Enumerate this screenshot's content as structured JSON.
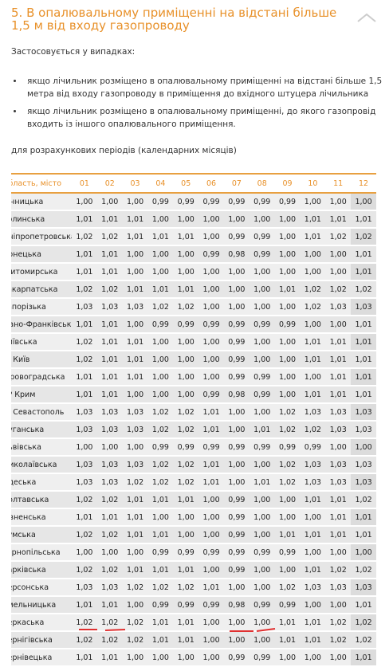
{
  "header": {
    "title": "5. В опалювальному приміщенні на відстані більше 1,5 м від входу газопроводу"
  },
  "intro": "Застосовується у випадках:",
  "bullets": [
    "якщо лічильник розміщено в опалювальному приміщенні на відстані більше 1,5 метра від входу газопроводу в приміщення до вхідного штуцера лічильника",
    "якщо лічильник розміщено в опалювальному приміщенні, до якого газопровід входить із іншого опалювального приміщення."
  ],
  "caption": "для розрахункових періодів (календарних місяців)",
  "table": {
    "columns": [
      "Область, місто",
      "01",
      "02",
      "03",
      "04",
      "05",
      "06",
      "07",
      "08",
      "09",
      "10",
      "11",
      "12"
    ],
    "rows": [
      [
        "Вінницька",
        "1,00",
        "1,00",
        "1,00",
        "0,99",
        "0,99",
        "0,99",
        "0,99",
        "0,99",
        "0,99",
        "1,00",
        "1,00",
        "1,00"
      ],
      [
        "Волинська",
        "1,01",
        "1,01",
        "1,01",
        "1,00",
        "1,00",
        "1,00",
        "1,00",
        "1,00",
        "1,00",
        "1,01",
        "1,01",
        "1,01"
      ],
      [
        "Дніпропетровська",
        "1,02",
        "1,02",
        "1,01",
        "1,01",
        "1,01",
        "1,00",
        "0,99",
        "0,99",
        "1,00",
        "1,01",
        "1,02",
        "1,02"
      ],
      [
        "Донецька",
        "1,01",
        "1,01",
        "1,00",
        "1,00",
        "1,00",
        "0,99",
        "0,98",
        "0,99",
        "1,00",
        "1,00",
        "1,00",
        "1,01"
      ],
      [
        "Житомирська",
        "1,01",
        "1,01",
        "1,00",
        "1,00",
        "1,00",
        "1,00",
        "1,00",
        "1,00",
        "1,00",
        "1,00",
        "1,00",
        "1,01"
      ],
      [
        "Закарпатська",
        "1,02",
        "1,02",
        "1,01",
        "1,01",
        "1,01",
        "1,00",
        "1,00",
        "1,00",
        "1,01",
        "1,02",
        "1,02",
        "1,02"
      ],
      [
        "Запорізька",
        "1,03",
        "1,03",
        "1,03",
        "1,02",
        "1,02",
        "1,00",
        "1,00",
        "1,00",
        "1,00",
        "1,02",
        "1,03",
        "1,03"
      ],
      [
        "Івано-Франківська",
        "1,01",
        "1,01",
        "1,00",
        "0,99",
        "0,99",
        "0,99",
        "0,99",
        "0,99",
        "0,99",
        "1,00",
        "1,00",
        "1,01"
      ],
      [
        "Київська",
        "1,02",
        "1,01",
        "1,01",
        "1,00",
        "1,00",
        "1,00",
        "0,99",
        "1,00",
        "1,00",
        "1,01",
        "1,01",
        "1,01"
      ],
      [
        "м. Київ",
        "1,02",
        "1,01",
        "1,01",
        "1,00",
        "1,00",
        "1,00",
        "0,99",
        "1,00",
        "1,00",
        "1,01",
        "1,01",
        "1,01"
      ],
      [
        "Кіровоградська",
        "1,01",
        "1,01",
        "1,01",
        "1,00",
        "1,00",
        "1,00",
        "0,99",
        "0,99",
        "1,00",
        "1,00",
        "1,01",
        "1,01"
      ],
      [
        "АР Крим",
        "1,01",
        "1,01",
        "1,00",
        "1,00",
        "1,00",
        "0,99",
        "0,98",
        "0,99",
        "1,00",
        "1,01",
        "1,01",
        "1,01"
      ],
      [
        "м. Севастополь",
        "1,03",
        "1,03",
        "1,03",
        "1,02",
        "1,02",
        "1,01",
        "1,00",
        "1,00",
        "1,02",
        "1,03",
        "1,03",
        "1,03"
      ],
      [
        "Луганська",
        "1,03",
        "1,03",
        "1,03",
        "1,02",
        "1,02",
        "1,01",
        "1,00",
        "1,01",
        "1,02",
        "1,02",
        "1,03",
        "1,03"
      ],
      [
        "Львівська",
        "1,00",
        "1,00",
        "1,00",
        "0,99",
        "0,99",
        "0,99",
        "0,99",
        "0,99",
        "0,99",
        "0,99",
        "1,00",
        "1,00"
      ],
      [
        "Миколаївська",
        "1,03",
        "1,03",
        "1,03",
        "1,02",
        "1,02",
        "1,01",
        "1,00",
        "1,00",
        "1,02",
        "1,03",
        "1,03",
        "1,03"
      ],
      [
        "Одеська",
        "1,03",
        "1,03",
        "1,02",
        "1,02",
        "1,02",
        "1,01",
        "1,00",
        "1,01",
        "1,02",
        "1,03",
        "1,03",
        "1,03"
      ],
      [
        "Полтавська",
        "1,02",
        "1,02",
        "1,01",
        "1,01",
        "1,01",
        "1,00",
        "0,99",
        "1,00",
        "1,00",
        "1,01",
        "1,01",
        "1,02"
      ],
      [
        "Рівненська",
        "1,01",
        "1,01",
        "1,01",
        "1,00",
        "1,00",
        "1,00",
        "0,99",
        "1,00",
        "1,00",
        "1,00",
        "1,01",
        "1,01"
      ],
      [
        "Сумська",
        "1,02",
        "1,02",
        "1,01",
        "1,01",
        "1,00",
        "1,00",
        "0,99",
        "1,00",
        "1,01",
        "1,01",
        "1,01",
        "1,01"
      ],
      [
        "Тернопільська",
        "1,00",
        "1,00",
        "1,00",
        "0,99",
        "0,99",
        "0,99",
        "0,99",
        "0,99",
        "0,99",
        "1,00",
        "1,00",
        "1,00"
      ],
      [
        "Харківська",
        "1,02",
        "1,02",
        "1,01",
        "1,01",
        "1,01",
        "1,00",
        "0,99",
        "1,00",
        "1,00",
        "1,01",
        "1,02",
        "1,02"
      ],
      [
        "Херсонська",
        "1,03",
        "1,03",
        "1,02",
        "1,02",
        "1,02",
        "1,01",
        "1,00",
        "1,00",
        "1,02",
        "1,03",
        "1,03",
        "1,03"
      ],
      [
        "Хмельницька",
        "1,01",
        "1,01",
        "1,00",
        "0,99",
        "0,99",
        "0,99",
        "0,98",
        "0,99",
        "0,99",
        "1,00",
        "1,00",
        "1,01"
      ],
      [
        "Черкаська",
        "1,02",
        "1,02",
        "1,02",
        "1,01",
        "1,01",
        "1,00",
        "1,00",
        "1,00",
        "1,01",
        "1,01",
        "1,02",
        "1,02"
      ],
      [
        "Чернігівська",
        "1,02",
        "1,02",
        "1,02",
        "1,01",
        "1,01",
        "1,00",
        "1,00",
        "1,00",
        "1,01",
        "1,01",
        "1,02",
        "1,02"
      ],
      [
        "Чернівецька",
        "1,01",
        "1,01",
        "1,00",
        "1,00",
        "1,00",
        "1,00",
        "0,99",
        "0,99",
        "1,00",
        "1,00",
        "1,00",
        "1,01"
      ]
    ]
  }
}
